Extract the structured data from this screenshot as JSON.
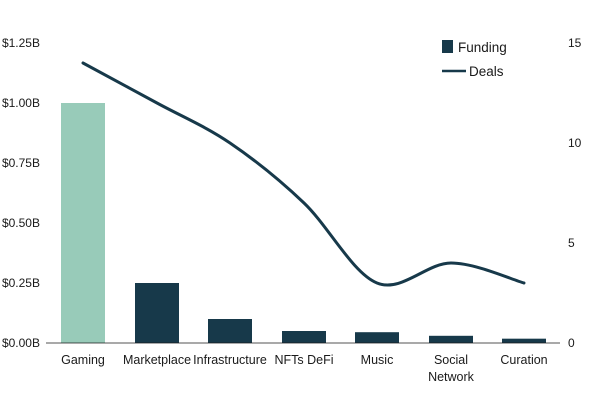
{
  "chart_data": {
    "type": "bar+line",
    "categories": [
      [
        "Gaming"
      ],
      [
        "Marketplace"
      ],
      [
        "Infrastructure"
      ],
      [
        "NFTs DeFi"
      ],
      [
        "Music"
      ],
      [
        "Social",
        "Network"
      ],
      [
        "Curation"
      ]
    ],
    "series": [
      {
        "name": "Funding",
        "kind": "bar",
        "axis": "left",
        "unit": "$B",
        "values": [
          1.0,
          0.25,
          0.1,
          0.05,
          0.045,
          0.03,
          0.018
        ],
        "highlight_index": 0
      },
      {
        "name": "Deals",
        "kind": "line",
        "axis": "right",
        "values": [
          14,
          12,
          10,
          7,
          3,
          4,
          3
        ]
      }
    ],
    "left_axis": {
      "range": [
        0,
        1.25
      ],
      "ticks": [
        0,
        0.25,
        0.5,
        0.75,
        1.0,
        1.25
      ],
      "tick_labels": [
        "$0.00B",
        "$0.25B",
        "$0.50B",
        "$0.75B",
        "$1.00B",
        "$1.25B"
      ]
    },
    "right_axis": {
      "range": [
        0,
        15
      ],
      "ticks": [
        0,
        5,
        10,
        15
      ],
      "tick_labels": [
        "0",
        "5",
        "10",
        "15"
      ]
    },
    "legend": {
      "placement": "top-right",
      "items": [
        {
          "label": "Funding",
          "symbol": "square"
        },
        {
          "label": "Deals",
          "symbol": "line"
        }
      ]
    },
    "grid": false,
    "colors": {
      "bar": "#17394a",
      "bar_highlight": "#98cbb9",
      "line": "#17394a",
      "text": "#1a1a1a"
    }
  }
}
